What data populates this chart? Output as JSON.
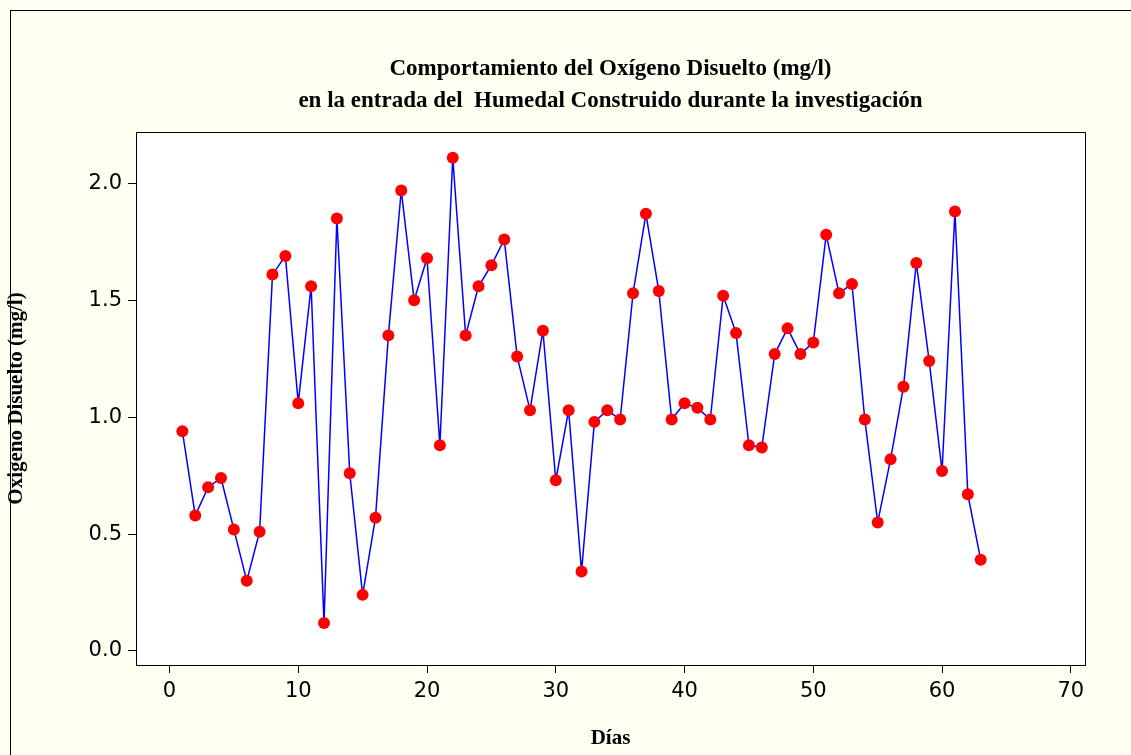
{
  "chart_data": {
    "type": "line",
    "title": "Comportamiento del Oxígeno Disuelto (mg/l)\nen la entrada del  Humedal Construido durante la investigación",
    "xlabel": "Días",
    "ylabel": "Oxigeno Disuelto (mg/l)",
    "x": [
      1,
      2,
      3,
      4,
      5,
      6,
      7,
      8,
      9,
      10,
      11,
      12,
      13,
      14,
      15,
      16,
      17,
      18,
      19,
      20,
      21,
      22,
      23,
      24,
      25,
      26,
      27,
      28,
      29,
      30,
      31,
      32,
      33,
      34,
      35,
      36,
      37,
      38,
      39,
      40,
      41,
      42,
      43,
      44,
      45,
      46,
      47,
      48,
      49,
      50,
      51,
      52,
      53,
      54,
      55,
      56,
      57,
      58,
      59,
      60,
      61,
      62,
      63
    ],
    "series": [
      {
        "color": "#0000ff",
        "colors": [
          "#ff0000",
          "#ff0000",
          "#ff0000",
          "#ff0000",
          "#ff0000",
          "#ff0000",
          "#ff0000",
          "#ff0000",
          "#ff0000",
          "#ff0000",
          "#ff0000",
          "#ff0000",
          "#ff0000",
          "#ff0000",
          "#ff0000",
          "#ff0000",
          "#ff0000",
          "#ff0000",
          "#ff0000",
          "#ff0000",
          "#ff0000",
          "#ff0000",
          "#ff0000",
          "#ff0000",
          "#ff0000",
          "#ff0000",
          "#ff0000",
          "#ff0000",
          "#ff0000",
          "#ff0000",
          "#ff0000",
          "#ff0000",
          "#ff0000",
          "#ff0000",
          "#ff0000",
          "#ff0000",
          "#ff0000",
          "#ff0000",
          "#ff0000",
          "#ff0000",
          "#ff0000",
          "#ff0000",
          "#ff0000",
          "#ff0000",
          "#ff0000",
          "#ff0000",
          "#ff0000",
          "#ff0000",
          "#ff0000",
          "#ff0000",
          "#ff0000",
          "#ff0000",
          "#ff0000",
          "#ff0000",
          "#ff0000",
          "#ff0000",
          "#ff0000",
          "#ff0000",
          "#ff0000",
          "#ff0000",
          "#ff0000",
          "#ff0000",
          "#ff0000"
        ],
        "values": [
          0.94,
          0.58,
          0.7,
          0.74,
          0.52,
          0.3,
          0.51,
          1.61,
          1.69,
          1.06,
          1.56,
          0.12,
          1.85,
          0.76,
          0.24,
          0.57,
          1.35,
          1.97,
          1.5,
          1.68,
          0.88,
          2.11,
          1.35,
          1.56,
          1.65,
          1.76,
          1.26,
          1.03,
          1.37,
          0.73,
          1.03,
          0.34,
          0.98,
          1.03,
          0.99,
          1.53,
          1.87,
          1.54,
          0.99,
          1.06,
          1.04,
          0.99,
          1.52,
          1.36,
          0.88,
          0.87,
          1.27,
          1.38,
          1.27,
          1.32,
          1.78,
          1.53,
          1.57,
          0.99,
          0.55,
          0.82,
          1.13,
          1.66,
          1.24,
          0.77,
          1.88,
          0.67,
          0.39
        ]
      }
    ],
    "xlim": [
      -2.6,
      71.1
    ],
    "xticks": [
      0,
      10,
      20,
      30,
      40,
      50,
      60,
      70
    ],
    "ylim": [
      -0.06,
      2.22
    ],
    "yticks": [
      {
        "value": 0,
        "label": "0.0"
      },
      {
        "value": 0.5,
        "label": "0.5"
      },
      {
        "value": 1,
        "label": "1.0"
      },
      {
        "value": 1.5,
        "label": "1.5"
      },
      {
        "value": 2,
        "label": "2.0"
      }
    ],
    "grid": false,
    "legend": false,
    "marker": "circle",
    "line_style": "solid"
  }
}
